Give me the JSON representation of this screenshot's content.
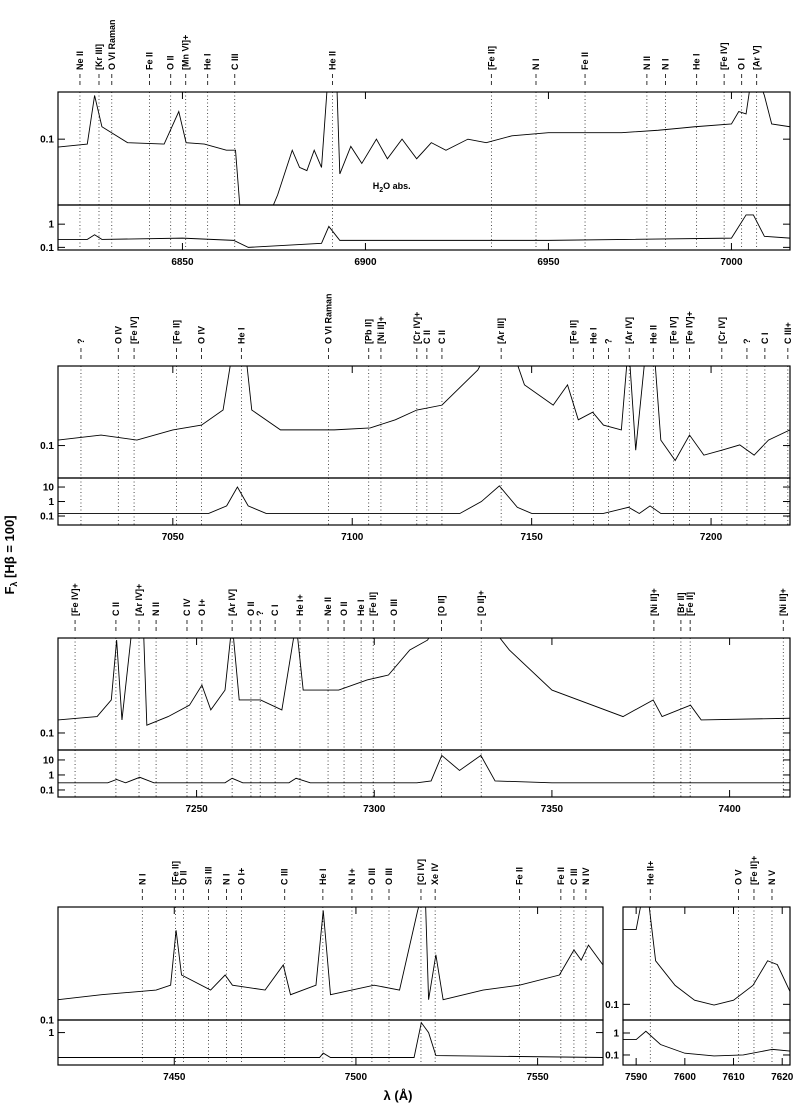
{
  "y_label": {
    "main": "F",
    "sub": "λ",
    "rest": " [Hβ = 100]"
  },
  "x_label": "λ (Å)",
  "chart_data": [
    {
      "type": "line",
      "log_y": true,
      "xlim": [
        6816,
        7016
      ],
      "ylim": [
        0.038,
        0.2
      ],
      "yticks": [
        0.1
      ],
      "x": [
        6816,
        6824,
        6826,
        6828,
        6835,
        6845,
        6849,
        6851,
        6856,
        6862,
        6864.5,
        6866,
        6873,
        6876,
        6880,
        6882,
        6884,
        6886,
        6888,
        6890,
        6892,
        6893,
        6896,
        6899,
        6903,
        6906,
        6910,
        6914,
        6918,
        6922,
        6928,
        6933,
        6940,
        6950,
        6960,
        6970,
        6980,
        6990,
        7000,
        7002,
        7004,
        7006,
        7009,
        7011,
        7016
      ],
      "series": [
        {
          "color": "#000000",
          "values": [
            0.089,
            0.093,
            0.19,
            0.12,
            0.095,
            0.093,
            0.15,
            0.095,
            0.093,
            0.085,
            0.085,
            0.03,
            0.03,
            0.044,
            0.085,
            0.066,
            0.063,
            0.085,
            0.066,
            0.3,
            0.3,
            0.06,
            0.09,
            0.07,
            0.1,
            0.075,
            0.1,
            0.075,
            0.095,
            0.085,
            0.1,
            0.095,
            0.105,
            0.11,
            0.11,
            0.11,
            0.114,
            0.12,
            0.125,
            0.15,
            0.145,
            0.3,
            0.19,
            0.125,
            0.12
          ]
        }
      ],
      "annotation": {
        "main": "H",
        "sub": "2",
        "rest": "O abs.",
        "x": 6902,
        "y": 0.048
      },
      "line_ids": [
        {
          "label": "Ne II",
          "wavelength": 6822
        },
        {
          "label": "[Kr III]",
          "wavelength": 6827.2
        },
        {
          "label": "O VI Raman",
          "wavelength": 6830.7
        },
        {
          "label": "Fe II",
          "wavelength": 6841
        },
        {
          "label": "O II",
          "wavelength": 6846.8
        },
        {
          "label": "[Mn VI]+",
          "wavelength": 6850.9
        },
        {
          "label": "He I",
          "wavelength": 6856.9
        },
        {
          "label": "C III",
          "wavelength": 6864.3
        },
        {
          "label": "He II",
          "wavelength": 6891
        },
        {
          "label": "[Fe II]",
          "wavelength": 6934.4
        },
        {
          "label": "N I",
          "wavelength": 6946.6
        },
        {
          "label": "Fe II",
          "wavelength": 6960
        },
        {
          "label": "N II",
          "wavelength": 6976.9
        },
        {
          "label": "N I",
          "wavelength": 6982
        },
        {
          "label": "He I",
          "wavelength": 6990.5
        },
        {
          "label": "[Fe IV]",
          "wavelength": 6998
        },
        {
          "label": "O I",
          "wavelength": 7002.8
        },
        {
          "label": "[Ar V]",
          "wavelength": 7006.9
        }
      ]
    },
    {
      "type": "line",
      "log_y": true,
      "xlim": [
        6816,
        7016
      ],
      "ylim": [
        0.077,
        6.7
      ],
      "yticks": [
        0.1,
        1
      ],
      "xticks": [
        6850,
        6900,
        6950,
        7000
      ],
      "x": [
        6816,
        6824,
        6826,
        6828,
        6850,
        6864,
        6868,
        6888,
        6890,
        6893,
        6950,
        7000,
        7004,
        7006,
        7009,
        7016
      ],
      "series": [
        {
          "color": "#000000",
          "values": [
            0.22,
            0.22,
            0.35,
            0.22,
            0.25,
            0.2,
            0.1,
            0.15,
            0.8,
            0.2,
            0.2,
            0.25,
            2.5,
            2.5,
            0.3,
            0.25
          ]
        }
      ]
    },
    {
      "type": "line",
      "log_y": true,
      "xlim": [
        7018,
        7222
      ],
      "ylim": [
        0.06,
        0.35
      ],
      "yticks": [
        0.1
      ],
      "x": [
        7018,
        7030,
        7040,
        7050,
        7058,
        7064,
        7067,
        7070,
        7072,
        7080,
        7095,
        7105,
        7112,
        7118,
        7125,
        7135,
        7139,
        7144,
        7148,
        7156,
        7160,
        7163,
        7167,
        7170,
        7175,
        7177,
        7179,
        7182,
        7184,
        7186,
        7190,
        7194,
        7198,
        7203,
        7208,
        7212,
        7216,
        7222
      ],
      "series": [
        {
          "color": "#000000",
          "values": [
            0.109,
            0.118,
            0.109,
            0.128,
            0.138,
            0.175,
            0.5,
            0.5,
            0.175,
            0.128,
            0.128,
            0.132,
            0.15,
            0.175,
            0.189,
            0.329,
            0.5,
            0.5,
            0.26,
            0.189,
            0.26,
            0.15,
            0.169,
            0.138,
            0.128,
            0.5,
            0.093,
            0.5,
            0.5,
            0.109,
            0.079,
            0.118,
            0.086,
            0.093,
            0.101,
            0.086,
            0.109,
            0.128
          ]
        }
      ],
      "line_ids": [
        {
          "label": "?",
          "wavelength": 7024.4
        },
        {
          "label": "O IV",
          "wavelength": 7034.8
        },
        {
          "label": "[Fe IV]",
          "wavelength": 7039.2
        },
        {
          "label": "[Fe II]",
          "wavelength": 7051
        },
        {
          "label": "O IV",
          "wavelength": 7058
        },
        {
          "label": "He I",
          "wavelength": 7069.1
        },
        {
          "label": "O VI Raman",
          "wavelength": 7093.4
        },
        {
          "label": "[Pb II]",
          "wavelength": 7104.6
        },
        {
          "label": "[Ni II]+",
          "wavelength": 7108
        },
        {
          "label": "[Cr IV]+",
          "wavelength": 7118
        },
        {
          "label": "C II",
          "wavelength": 7120.8
        },
        {
          "label": "C II",
          "wavelength": 7125
        },
        {
          "label": "[Ar III]",
          "wavelength": 7141.5
        },
        {
          "label": "[Fe II]",
          "wavelength": 7161.6
        },
        {
          "label": "He I",
          "wavelength": 7167.2
        },
        {
          "label": "?",
          "wavelength": 7171.4
        },
        {
          "label": "[Ar IV]",
          "wavelength": 7177.2
        },
        {
          "label": "He II",
          "wavelength": 7183.9
        },
        {
          "label": "[Fe IV]",
          "wavelength": 7189.5
        },
        {
          "label": "[Fe IV]+",
          "wavelength": 7194
        },
        {
          "label": "[Cr IV]",
          "wavelength": 7203
        },
        {
          "label": "?",
          "wavelength": 7210
        },
        {
          "label": "C I",
          "wavelength": 7215
        },
        {
          "label": "C III+",
          "wavelength": 7221.4
        }
      ]
    },
    {
      "type": "line",
      "log_y": true,
      "xlim": [
        7018,
        7222
      ],
      "ylim": [
        0.024,
        42
      ],
      "yticks": [
        0.1,
        1,
        10
      ],
      "xticks": [
        7050,
        7100,
        7150,
        7200
      ],
      "x": [
        7018,
        7060,
        7065,
        7068,
        7071,
        7076,
        7130,
        7136,
        7141,
        7146,
        7150,
        7170,
        7177,
        7180,
        7183,
        7186,
        7222
      ],
      "series": [
        {
          "color": "#000000",
          "values": [
            0.15,
            0.15,
            0.5,
            10,
            0.5,
            0.15,
            0.15,
            1,
            12,
            0.4,
            0.15,
            0.15,
            0.4,
            0.15,
            0.5,
            0.15,
            0.15
          ]
        }
      ]
    },
    {
      "type": "line",
      "log_y": true,
      "xlim": [
        7211,
        7417
      ],
      "ylim": [
        0.078,
        0.4
      ],
      "yticks": [
        0.1
      ],
      "x": [
        7211,
        7222,
        7226,
        7227.5,
        7229,
        7232,
        7235,
        7236,
        7242,
        7248,
        7251.5,
        7254,
        7258,
        7260,
        7262,
        7268,
        7274,
        7278,
        7280,
        7290,
        7298,
        7304,
        7310,
        7315,
        7318,
        7332,
        7338,
        7350,
        7370,
        7378.5,
        7381,
        7389,
        7392,
        7417
      ],
      "series": [
        {
          "color": "#000000",
          "values": [
            0.121,
            0.127,
            0.162,
            0.388,
            0.121,
            0.5,
            0.5,
            0.112,
            0.127,
            0.15,
            0.201,
            0.14,
            0.187,
            0.5,
            0.162,
            0.162,
            0.14,
            0.5,
            0.187,
            0.187,
            0.217,
            0.233,
            0.336,
            0.388,
            0.5,
            0.5,
            0.336,
            0.187,
            0.127,
            0.162,
            0.127,
            0.15,
            0.121,
            0.124
          ]
        }
      ],
      "line_ids": [
        {
          "label": "[Fe IV]+",
          "wavelength": 7215.8
        },
        {
          "label": "C II",
          "wavelength": 7227.3
        },
        {
          "label": "[Ar IV]+",
          "wavelength": 7233.8
        },
        {
          "label": "N II",
          "wavelength": 7238.6
        },
        {
          "label": "C IV",
          "wavelength": 7247.3
        },
        {
          "label": "O I+",
          "wavelength": 7251.5
        },
        {
          "label": "[Ar IV]",
          "wavelength": 7260
        },
        {
          "label": "O II",
          "wavelength": 7265.3
        },
        {
          "label": "?",
          "wavelength": 7267.9
        },
        {
          "label": "C I",
          "wavelength": 7272.1
        },
        {
          "label": "He I+",
          "wavelength": 7279.1
        },
        {
          "label": "Ne II",
          "wavelength": 7287
        },
        {
          "label": "O II",
          "wavelength": 7291.5
        },
        {
          "label": "He I",
          "wavelength": 7296.3
        },
        {
          "label": "[Fe II]",
          "wavelength": 7299.7
        },
        {
          "label": "O III",
          "wavelength": 7305.6
        },
        {
          "label": "[O II]",
          "wavelength": 7318.9
        },
        {
          "label": "[O II]+",
          "wavelength": 7330.1
        },
        {
          "label": "[Ni II]+",
          "wavelength": 7378.7
        },
        {
          "label": "[Br II]",
          "wavelength": 7386.3
        },
        {
          "label": "[Fe II]",
          "wavelength": 7388.9
        },
        {
          "label": "[Ni II]+",
          "wavelength": 7415.1
        }
      ]
    },
    {
      "type": "line",
      "log_y": true,
      "xlim": [
        7211,
        7417
      ],
      "ylim": [
        0.034,
        46
      ],
      "yticks": [
        0.1,
        1,
        10
      ],
      "xticks": [
        7250,
        7300,
        7350,
        7400
      ],
      "x": [
        7211,
        7225,
        7227.5,
        7230,
        7234,
        7238,
        7258,
        7260,
        7263,
        7276,
        7278,
        7282,
        7312,
        7316,
        7319,
        7324,
        7330,
        7334,
        7350,
        7417
      ],
      "series": [
        {
          "color": "#000000",
          "values": [
            0.3,
            0.3,
            0.5,
            0.3,
            0.7,
            0.3,
            0.3,
            0.6,
            0.3,
            0.3,
            0.6,
            0.3,
            0.3,
            0.4,
            20,
            2,
            20,
            0.4,
            0.3,
            0.3
          ]
        }
      ]
    },
    {
      "type": "line",
      "log_y": true,
      "xlim": [
        7418,
        7568
      ],
      "ylim": [
        0.1,
        0.45
      ],
      "yticks": [
        0.1
      ],
      "x": [
        7418,
        7430,
        7445,
        7449,
        7450.5,
        7452,
        7460,
        7464,
        7466,
        7475,
        7480,
        7482,
        7489,
        7491,
        7493,
        7505,
        7512,
        7517,
        7519,
        7520,
        7522,
        7524,
        7535,
        7545,
        7556,
        7560,
        7562,
        7564,
        7568
      ],
      "series": [
        {
          "color": "#000000",
          "values": [
            0.131,
            0.14,
            0.149,
            0.159,
            0.33,
            0.182,
            0.149,
            0.182,
            0.159,
            0.149,
            0.208,
            0.14,
            0.159,
            0.43,
            0.14,
            0.159,
            0.149,
            0.43,
            0.6,
            0.131,
            0.238,
            0.131,
            0.149,
            0.159,
            0.182,
            0.254,
            0.222,
            0.271,
            0.208
          ]
        }
      ],
      "line_ids": [
        {
          "label": "N I",
          "wavelength": 7441.2
        },
        {
          "label": "[Fe II]",
          "wavelength": 7450.3
        },
        {
          "label": "O II",
          "wavelength": 7452.5
        },
        {
          "label": "Si III",
          "wavelength": 7459.4
        },
        {
          "label": "N I",
          "wavelength": 7464.4
        },
        {
          "label": "O I+",
          "wavelength": 7468.5
        },
        {
          "label": "C III",
          "wavelength": 7480.4
        },
        {
          "label": "He I",
          "wavelength": 7490.9
        },
        {
          "label": "N I+",
          "wavelength": 7498.9
        },
        {
          "label": "O III",
          "wavelength": 7504.4
        },
        {
          "label": "O III",
          "wavelength": 7509.1
        },
        {
          "label": "[Cl IV]",
          "wavelength": 7517.9
        },
        {
          "label": "Xe IV",
          "wavelength": 7521.8
        },
        {
          "label": "Fe II",
          "wavelength": 7545
        },
        {
          "label": "Fe II",
          "wavelength": 7556.4
        },
        {
          "label": "C III",
          "wavelength": 7560
        },
        {
          "label": "N IV",
          "wavelength": 7563.3
        }
      ]
    },
    {
      "type": "line",
      "log_y": true,
      "xlim": [
        7418,
        7568
      ],
      "ylim": [
        0.05,
        3.2
      ],
      "yticks": [
        1
      ],
      "xticks": [
        7450,
        7500,
        7550
      ],
      "x": [
        7418,
        7490,
        7491,
        7493,
        7516,
        7518,
        7520,
        7522,
        7568
      ],
      "series": [
        {
          "color": "#000000",
          "values": [
            0.1,
            0.1,
            0.15,
            0.1,
            0.1,
            2.5,
            1,
            0.12,
            0.1
          ]
        }
      ]
    },
    {
      "type": "line",
      "log_y": true,
      "xlim": [
        7587.3,
        7621.6
      ],
      "ylim": [
        0.08,
        0.4
      ],
      "yticks": [
        0.1
      ],
      "x": [
        7587.3,
        7590,
        7592,
        7594,
        7598,
        7602,
        7606,
        7610,
        7614,
        7617,
        7619,
        7621.6
      ],
      "series": [
        {
          "color": "#000000",
          "values": [
            0.29,
            0.29,
            0.6,
            0.186,
            0.131,
            0.106,
            0.099,
            0.106,
            0.131,
            0.186,
            0.176,
            0.12
          ]
        }
      ],
      "line_ids": [
        {
          "label": "He II+",
          "wavelength": 7592.9
        },
        {
          "label": "O V",
          "wavelength": 7611
        },
        {
          "label": "[Fe II]+",
          "wavelength": 7614.2
        },
        {
          "label": "N V",
          "wavelength": 7617.9
        }
      ]
    },
    {
      "type": "line",
      "log_y": true,
      "xlim": [
        7587.3,
        7621.6
      ],
      "ylim": [
        0.035,
        3.9
      ],
      "yticks": [
        0.1,
        1
      ],
      "xticks": [
        7590,
        7600,
        7610,
        7620
      ],
      "x": [
        7587.3,
        7590,
        7592,
        7595,
        7600,
        7606,
        7612,
        7618,
        7621.6
      ],
      "series": [
        {
          "color": "#000000",
          "values": [
            0.5,
            0.5,
            1.2,
            0.3,
            0.12,
            0.09,
            0.1,
            0.18,
            0.15
          ]
        }
      ]
    }
  ]
}
